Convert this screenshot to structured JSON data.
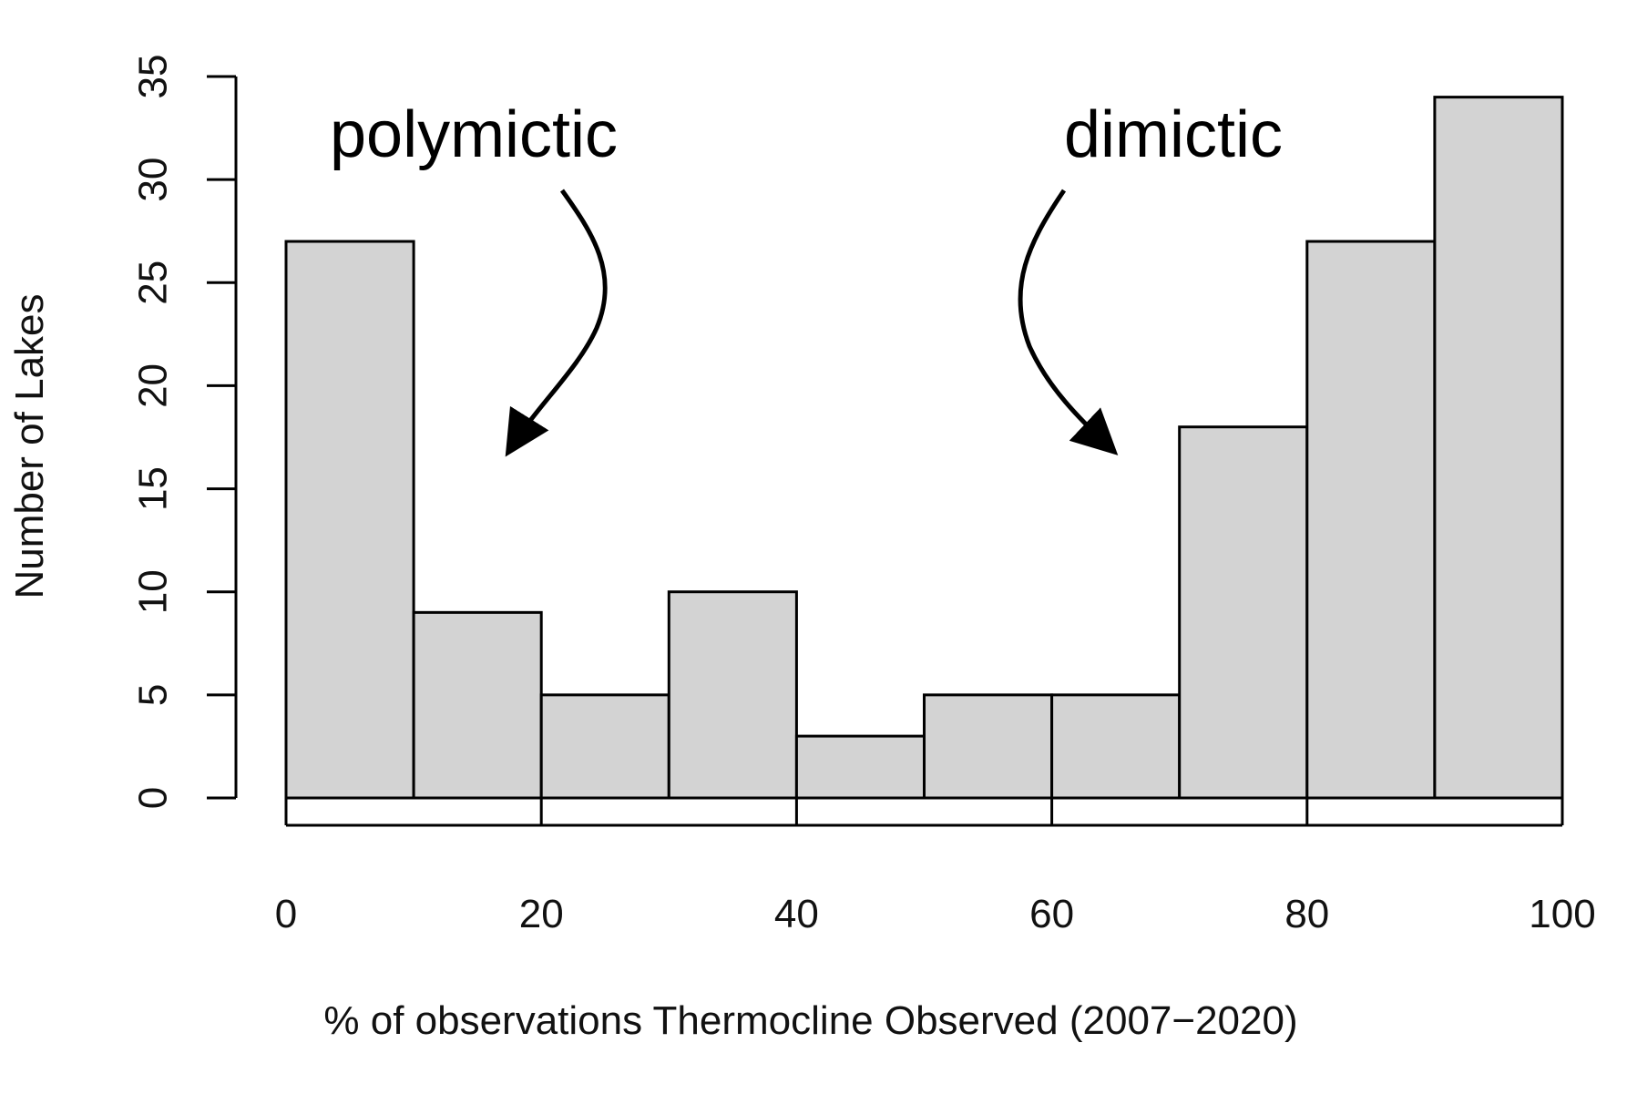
{
  "chart_data": {
    "type": "bar",
    "subtype": "histogram",
    "bin_edges": [
      0,
      10,
      20,
      30,
      40,
      50,
      60,
      70,
      80,
      90,
      100
    ],
    "values": [
      27,
      9,
      5,
      10,
      3,
      5,
      5,
      18,
      27,
      34
    ],
    "xlabel": "% of observations Thermocline Observed (2007−2020)",
    "ylabel": "Number of Lakes",
    "xlim": [
      0,
      100
    ],
    "ylim": [
      0,
      35
    ],
    "x_ticks": [
      0,
      20,
      40,
      60,
      80,
      100
    ],
    "y_ticks": [
      0,
      5,
      10,
      15,
      20,
      25,
      30,
      35
    ],
    "bar_color": "#d3d3d3",
    "edge_color": "#000000",
    "grid": false,
    "annotations": [
      {
        "text": "polymictic",
        "points_to_x": 17,
        "points_to_y": 16.5
      },
      {
        "text": "dimictic",
        "points_to_x": 65,
        "points_to_y": 16.5
      }
    ]
  }
}
